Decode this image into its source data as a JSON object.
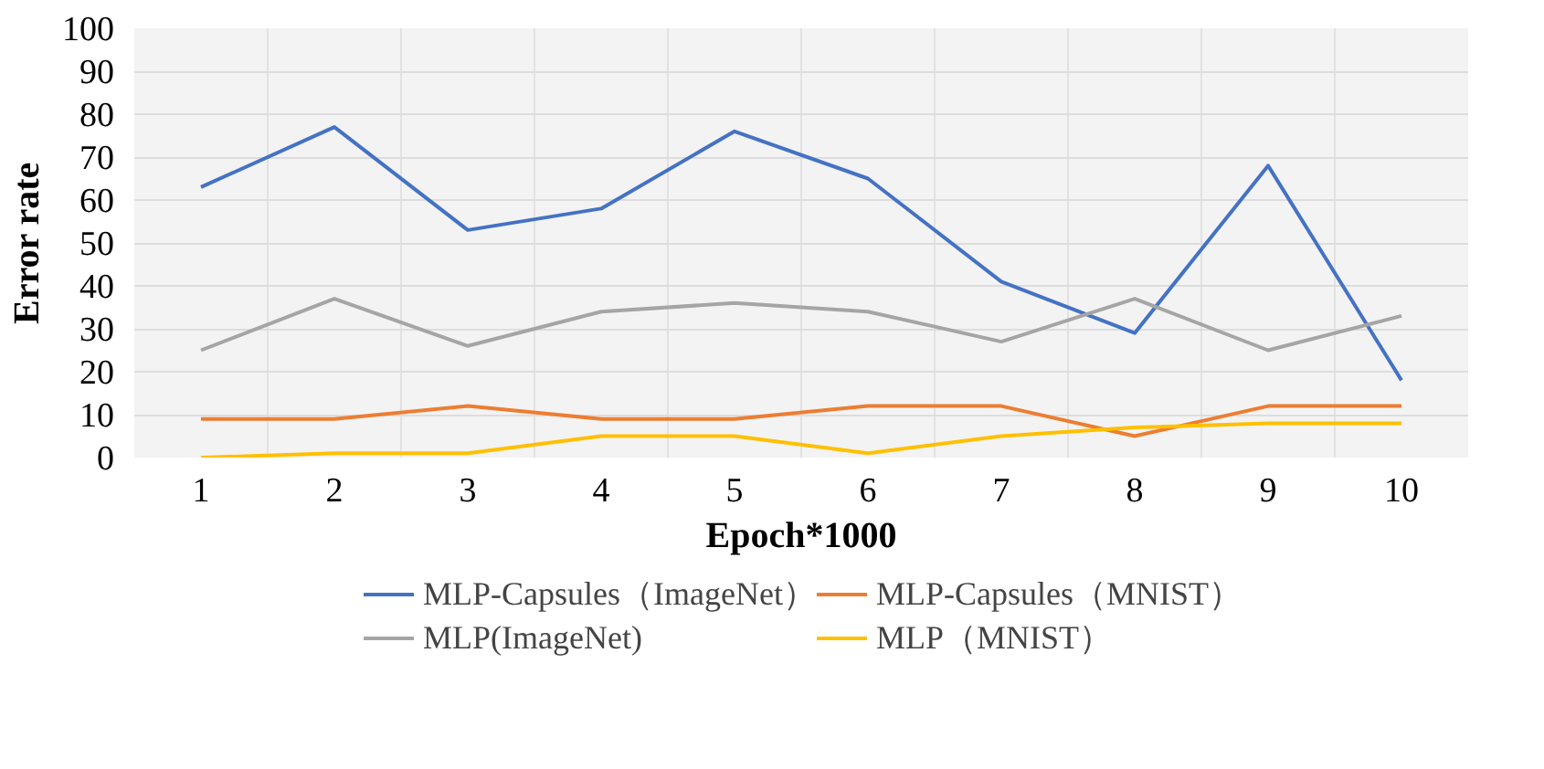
{
  "chart_data": {
    "type": "line",
    "xlabel": "Epoch*1000",
    "ylabel": "Error rate",
    "categories": [
      "1",
      "2",
      "3",
      "4",
      "5",
      "6",
      "7",
      "8",
      "9",
      "10"
    ],
    "ylim": [
      0,
      100
    ],
    "yticks": [
      0,
      10,
      20,
      30,
      40,
      50,
      60,
      70,
      80,
      90,
      100
    ],
    "grid": true,
    "legend": "bottom",
    "marker": "none",
    "line_style": "solid",
    "series": [
      {
        "name": "MLP-Capsules（ImageNet）",
        "color": "#4472c4",
        "values": [
          63,
          77,
          53,
          58,
          76,
          65,
          41,
          29,
          68,
          18
        ]
      },
      {
        "name": "MLP-Capsules（MNIST）",
        "color": "#ed7d31",
        "values": [
          9,
          9,
          12,
          9,
          9,
          12,
          12,
          5,
          12,
          12
        ]
      },
      {
        "name": "MLP(ImageNet)",
        "color": "#a5a5a5",
        "values": [
          25,
          37,
          26,
          34,
          36,
          34,
          27,
          37,
          25,
          33
        ]
      },
      {
        "name": "MLP（MNIST）",
        "color": "#ffc000",
        "values": [
          0,
          1,
          1,
          5,
          5,
          1,
          5,
          7,
          8,
          8
        ]
      }
    ]
  }
}
